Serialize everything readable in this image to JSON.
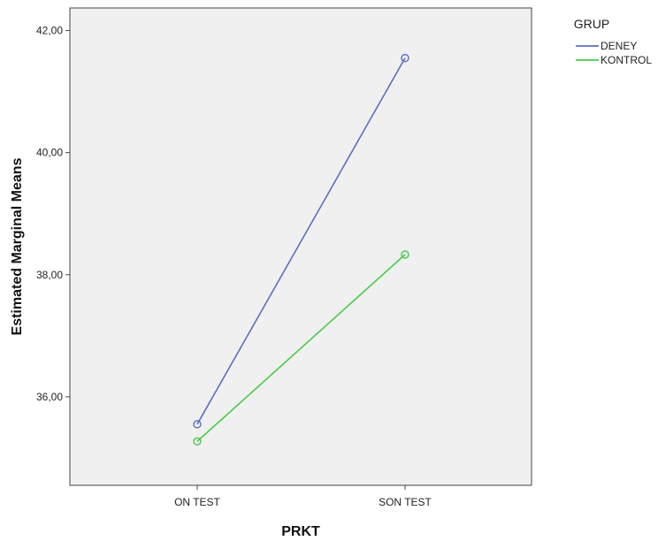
{
  "chart_data": {
    "type": "line",
    "xlabel": "PRKT",
    "ylabel": "Estimated Marginal Means",
    "categories": [
      "ON TEST",
      "SON TEST"
    ],
    "yticks": [
      "36,00",
      "38,00",
      "40,00",
      "42,00"
    ],
    "ytick_values": [
      36,
      38,
      40,
      42
    ],
    "ylim": [
      34.55,
      42.37
    ],
    "legend": {
      "title": "GRUP",
      "placement": "top-right-outside"
    },
    "series": [
      {
        "name": "DENEY",
        "values": [
          35.55,
          41.55
        ],
        "color": "#5b6fc4"
      },
      {
        "name": "KONTROL",
        "values": [
          35.27,
          38.33
        ],
        "color": "#4ac94a"
      }
    ],
    "plot_background": "#f0f0f0",
    "grid": false
  }
}
